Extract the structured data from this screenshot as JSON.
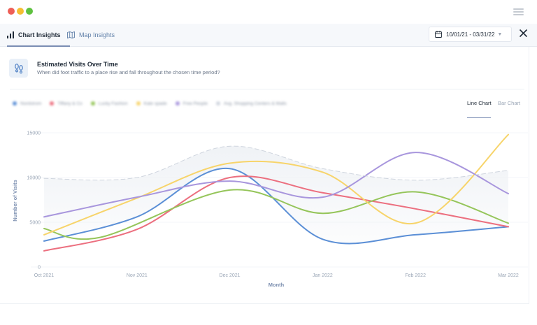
{
  "window": {
    "controls": [
      {
        "color": "#ee5f57"
      },
      {
        "color": "#f5be32"
      },
      {
        "color": "#5fc140"
      }
    ]
  },
  "tabs": [
    {
      "label": "Chart Insights",
      "active": true,
      "icon": "bar-chart-icon"
    },
    {
      "label": "Map Insights",
      "active": false,
      "icon": "map-icon"
    }
  ],
  "date_range": {
    "label": "10/01/21 - 03/31/22",
    "icon": "calendar-icon"
  },
  "card": {
    "title": "Estimated Visits Over Time",
    "subtitle": "When did foot traffic to a place rise and fall throughout the chosen time period?",
    "icon": "footprints-icon"
  },
  "legend": [
    {
      "label": "Nordstrom",
      "color": "#5b8fd6"
    },
    {
      "label": "Tiffany & Co",
      "color": "#ec6f7f"
    },
    {
      "label": "Lucky Fashion",
      "color": "#95c55a"
    },
    {
      "label": "Kate spade",
      "color": "#f7d46a"
    },
    {
      "label": "Free People",
      "color": "#a896dd"
    },
    {
      "label": "Avg. Shopping Centers & Malls",
      "color": "#cfd5de"
    }
  ],
  "view_tabs": [
    {
      "label": "Line Chart",
      "active": true
    },
    {
      "label": "Bar Chart",
      "active": false
    }
  ],
  "chart_data": {
    "type": "line",
    "xlabel": "Month",
    "ylabel": "Number of Visits",
    "ylim": [
      0,
      15000
    ],
    "yticks": [
      0,
      5000,
      10000,
      15000
    ],
    "x_tick_labels": [
      "Oct 2021",
      "Nov 2021",
      "Dec 2021",
      "Jan 2022",
      "Feb 2022",
      "Mar 2022"
    ],
    "x_range": [
      0,
      5
    ],
    "series": [
      {
        "color": "#5b8fd6",
        "points": [
          [
            0,
            2900
          ],
          [
            1,
            5600
          ],
          [
            2,
            11000
          ],
          [
            3,
            3100
          ],
          [
            4,
            3600
          ],
          [
            5,
            4500
          ]
        ]
      },
      {
        "color": "#ec6f7f",
        "points": [
          [
            0,
            1800
          ],
          [
            1,
            4200
          ],
          [
            2,
            10000
          ],
          [
            3,
            8300
          ],
          [
            4,
            6500
          ],
          [
            5,
            4500
          ]
        ]
      },
      {
        "color": "#95c55a",
        "points": [
          [
            0,
            4300
          ],
          [
            0.6,
            3300
          ],
          [
            2,
            8600
          ],
          [
            3,
            6000
          ],
          [
            4,
            8400
          ],
          [
            5,
            4900
          ]
        ]
      },
      {
        "color": "#f7d46a",
        "points": [
          [
            0,
            3600
          ],
          [
            1,
            7700
          ],
          [
            2,
            11600
          ],
          [
            3,
            10600
          ],
          [
            4,
            4900
          ],
          [
            5,
            14800
          ]
        ]
      },
      {
        "color": "#a896dd",
        "points": [
          [
            0,
            5600
          ],
          [
            1,
            7800
          ],
          [
            2,
            9600
          ],
          [
            3,
            7800
          ],
          [
            4,
            12800
          ],
          [
            5,
            8200
          ]
        ]
      },
      {
        "color": "#cfd5de",
        "dashed": true,
        "points": [
          [
            0,
            9900
          ],
          [
            1,
            10000
          ],
          [
            2,
            13500
          ],
          [
            3,
            11000
          ],
          [
            4,
            9700
          ],
          [
            5,
            10800
          ]
        ]
      }
    ]
  }
}
